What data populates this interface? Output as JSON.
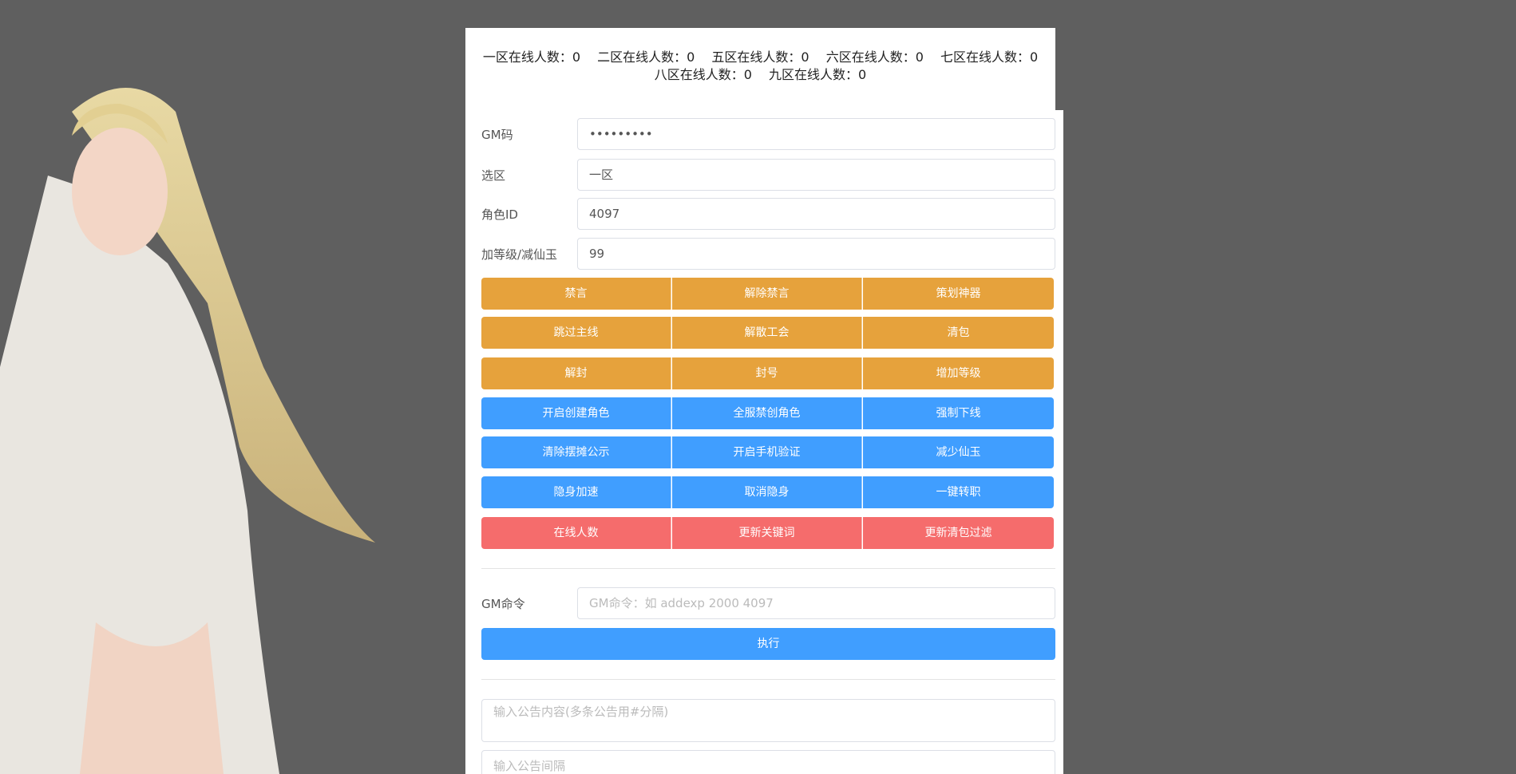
{
  "header": {
    "online": [
      "一区在线人数：0",
      "二区在线人数：0",
      "五区在线人数：0",
      "六区在线人数：0",
      "七区在线人数：0",
      "八区在线人数：0",
      "九区在线人数：0"
    ]
  },
  "form": {
    "fields": [
      {
        "label": "GM码",
        "value": "•••••••••"
      },
      {
        "label": "选区",
        "value": "一区"
      },
      {
        "label": "角色ID",
        "value": "4097"
      },
      {
        "label": "加等级/减仙玉",
        "value": "99"
      }
    ],
    "button_rows": [
      {
        "color": "#e6a23c",
        "buttons": [
          "禁言",
          "解除禁言",
          "策划神器"
        ]
      },
      {
        "color": "#e6a23c",
        "buttons": [
          "跳过主线",
          "解散工会",
          "清包"
        ]
      },
      {
        "color": "#e6a23c",
        "buttons": [
          "解封",
          "封号",
          "增加等级"
        ]
      },
      {
        "color": "#409eff",
        "buttons": [
          "开启创建角色",
          "全服禁创角色",
          "强制下线"
        ]
      },
      {
        "color": "#409eff",
        "buttons": [
          "清除摆摊公示",
          "开启手机验证",
          "减少仙玉"
        ]
      },
      {
        "color": "#409eff",
        "buttons": [
          "隐身加速",
          "取消隐身",
          "一键转职"
        ]
      },
      {
        "color": "#f56c6c",
        "buttons": [
          "在线人数",
          "更新关键词",
          "更新清包过滤"
        ]
      }
    ],
    "gm": {
      "label": "GM命令",
      "placeholder": "GM命令：如 addexp 2000 4097",
      "button": "执行"
    },
    "notice": {
      "content_placeholder": "输入公告内容(多条公告用#分隔)",
      "interval_placeholder": "输入公告间隔"
    }
  }
}
